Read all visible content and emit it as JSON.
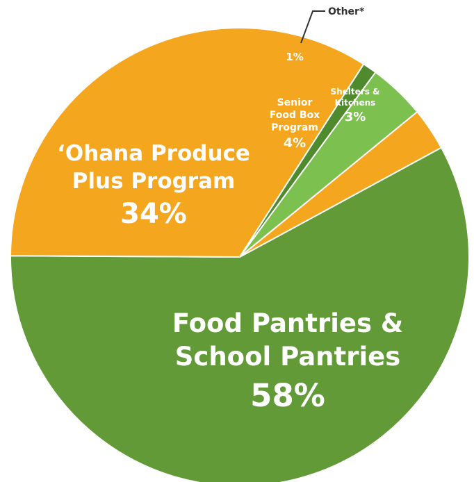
{
  "chart_data": {
    "type": "pie",
    "title": "",
    "slices": [
      {
        "label_lines": [
          "Food Pantries &",
          "School Pantries"
        ],
        "value": 58,
        "value_text": "58%",
        "color": "#629a38"
      },
      {
        "label_lines": [
          "‘Ohana Produce",
          "Plus Program"
        ],
        "value": 34,
        "value_text": "34%",
        "color": "#f5a61f"
      },
      {
        "label_lines": [],
        "value": 1,
        "value_text": "1%",
        "color": "#4f8a2f"
      },
      {
        "label_lines": [
          "Senior",
          "Food Box",
          "Program"
        ],
        "value": 4,
        "value_text": "4%",
        "color": "#7cc150"
      },
      {
        "label_lines": [
          "Shelters &",
          "Kitchens"
        ],
        "value": 3,
        "value_text": "3%",
        "color": "#f5a61f"
      }
    ],
    "callout": {
      "text": "Other*",
      "slice_index": 2,
      "color": "#333333"
    }
  }
}
